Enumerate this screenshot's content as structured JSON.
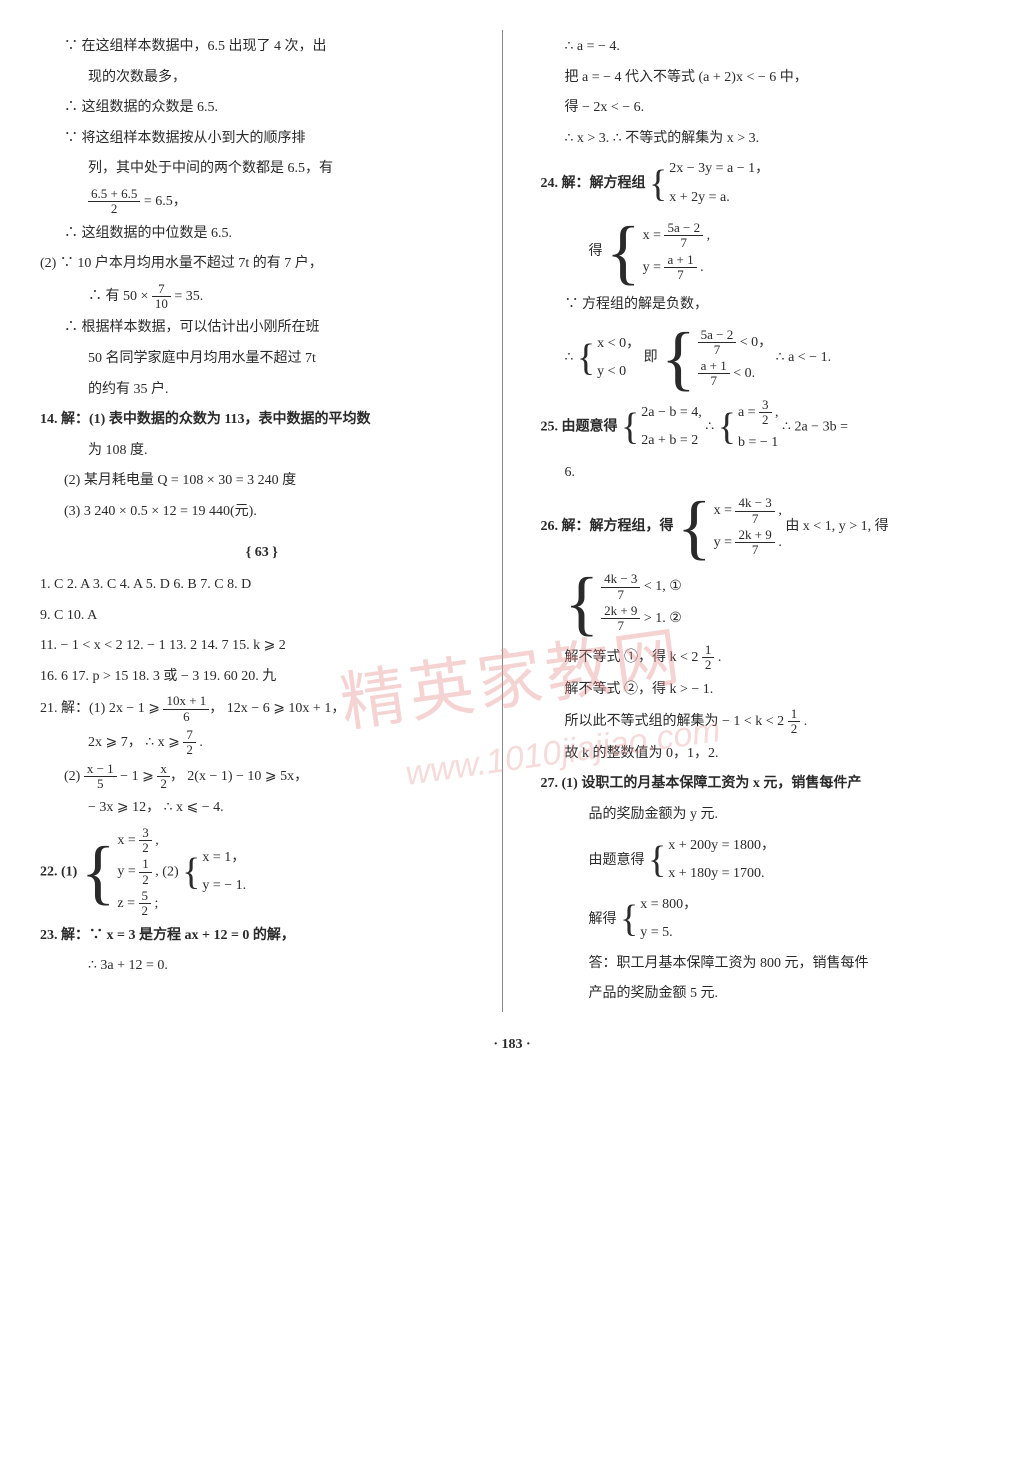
{
  "watermark_main": "精英家教网",
  "watermark_sub": "www.1010jiajiao.com",
  "page_number": "· 183 ·",
  "left": {
    "l01": "∵ 在这组样本数据中，6.5 出现了 4 次，出",
    "l02": "现的次数最多，",
    "l03": "∴ 这组数据的众数是 6.5.",
    "l04": "∵ 将这组样本数据按从小到大的顺序排",
    "l05": "列，其中处于中间的两个数都是 6.5，有",
    "l06a": "6.5 + 6.5",
    "l06b": "2",
    "l06c": " = 6.5，",
    "l07": "∴ 这组数据的中位数是 6.5.",
    "l08": "(2) ∵ 10 户本月均用水量不超过 7t 的有 7 户，",
    "l09a": "∴ 有 50 × ",
    "l09n": "7",
    "l09d": "10",
    "l09b": " = 35.",
    "l10": "∴ 根据样本数据，可以估计出小刚所在班",
    "l11": "50 名同学家庭中月均用水量不超过 7t",
    "l12": "的约有 35 户.",
    "l13": "14. 解：(1) 表中数据的众数为 113，表中数据的平均数",
    "l14": "为 108 度.",
    "l15": "(2) 某月耗电量 Q = 108 × 30 = 3 240 度",
    "l16": "(3) 3 240 × 0.5 × 12 = 19 440(元).",
    "sec": "{ 63 }",
    "mc": "1. C  2. A  3. C  4. A  5. D  6. B  7. C  8. D",
    "mc2": "9. C  10. A",
    "l17": "11. − 1 < x < 2  12. − 1  13. 2  14. 7  15. k ⩾ 2",
    "l18": "16. 6  17. p > 15  18. 3 或 − 3  19. 60  20. 九",
    "l19a": "21. 解：(1) 2x − 1 ⩾ ",
    "l19n": "10x + 1",
    "l19d": "6",
    "l19b": "，  12x − 6 ⩾ 10x + 1，",
    "l20a": "2x ⩾ 7，  ∴ x ⩾ ",
    "l20n": "7",
    "l20d": "2",
    "l20b": " .",
    "l21a": "(2) ",
    "l21n1": "x − 1",
    "l21d1": "5",
    "l21m": " − 1 ⩾ ",
    "l21n2": "x",
    "l21d2": "2",
    "l21b": "，  2(x − 1) − 10 ⩾ 5x，",
    "l22": "− 3x ⩾ 12，  ∴ x ⩽ − 4.",
    "l23": "22. (1) ",
    "sys22a_1a": "x = ",
    "sys22a_1n": "3",
    "sys22a_1d": "2",
    "sys22a_1b": " ,",
    "sys22a_2a": "y = ",
    "sys22a_2n": "1",
    "sys22a_2d": "2",
    "sys22a_2b": " ,",
    "sys22a_3a": "z = ",
    "sys22a_3n": "5",
    "sys22a_3d": "2",
    "sys22a_3b": " ;",
    "l23m": "  (2) ",
    "sys22b_1": "x = 1，",
    "sys22b_2": "y = − 1.",
    "l24": "23. 解：∵ x = 3 是方程 ax + 12 = 0 的解，",
    "l25": "∴ 3a + 12 = 0."
  },
  "right": {
    "r01": "∴ a = − 4.",
    "r02": "把 a = − 4 代入不等式 (a + 2)x < − 6 中，",
    "r03": "得 − 2x < − 6.",
    "r04": "∴ x > 3. ∴ 不等式的解集为 x > 3.",
    "r05": "24. 解：解方程组 ",
    "sys24a_1": "2x − 3y = a − 1，",
    "sys24a_2": "x + 2y = a.",
    "r06": "得 ",
    "sys24b_1a": "x = ",
    "sys24b_1n": "5a − 2",
    "sys24b_1d": "7",
    "sys24b_1b": " ,",
    "sys24b_2a": "y = ",
    "sys24b_2n": "a + 1",
    "sys24b_2d": "7",
    "sys24b_2b": " .",
    "r07": "∵ 方程组的解是负数，",
    "r08": "∴ ",
    "sys24c_1": "x < 0，",
    "sys24c_2": "y < 0",
    "r08m": "  即 ",
    "sys24d_1n": "5a − 2",
    "sys24d_1d": "7",
    "sys24d_1b": " < 0，",
    "sys24d_2n": "a + 1",
    "sys24d_2d": "7",
    "sys24d_2b": " < 0.",
    "r08e": "  ∴ a < − 1.",
    "r09": "25. 由题意得 ",
    "sys25a_1": "2a − b = 4,",
    "sys25a_2": "2a + b = 2",
    "r09m": " ∴ ",
    "sys25b_1a": "a = ",
    "sys25b_1n": "3",
    "sys25b_1d": "2",
    "sys25b_1b": " ,",
    "sys25b_2": "b = − 1",
    "r09e": " ∴ 2a − 3b =",
    "r10": "6.",
    "r11": "26. 解：解方程组，得 ",
    "sys26_1a": "x = ",
    "sys26_1n": "4k − 3",
    "sys26_1d": "7",
    "sys26_1b": " ,",
    "sys26_2a": "y = ",
    "sys26_2n": "2k + 9",
    "sys26_2d": "7",
    "sys26_2b": " .",
    "r11e": " 由 x < 1, y > 1, 得",
    "sys26b_1n": "4k − 3",
    "sys26b_1d": "7",
    "sys26b_1b": " < 1,  ①",
    "sys26b_2n": "2k + 9",
    "sys26b_2d": "7",
    "sys26b_2b": " > 1.  ②",
    "r12a": "解不等式 ①，得 k < 2 ",
    "r12n": "1",
    "r12d": "2",
    "r12b": " .",
    "r13": "解不等式 ②，得 k > − 1.",
    "r14a": "所以此不等式组的解集为 − 1 < k < 2 ",
    "r14n": "1",
    "r14d": "2",
    "r14b": " .",
    "r15": "故 k 的整数值为 0，1，2.",
    "r16": "27. (1) 设职工的月基本保障工资为 x 元，销售每件产",
    "r17": "品的奖励金额为 y 元.",
    "r18": "由题意得 ",
    "sys27_1": "x + 200y = 1800，",
    "sys27_2": "x + 180y = 1700.",
    "r19": "解得 ",
    "sys27b_1": "x = 800，",
    "sys27b_2": "y = 5.",
    "r20": "答：职工月基本保障工资为 800 元，销售每件",
    "r21": "产品的奖励金额 5 元."
  }
}
